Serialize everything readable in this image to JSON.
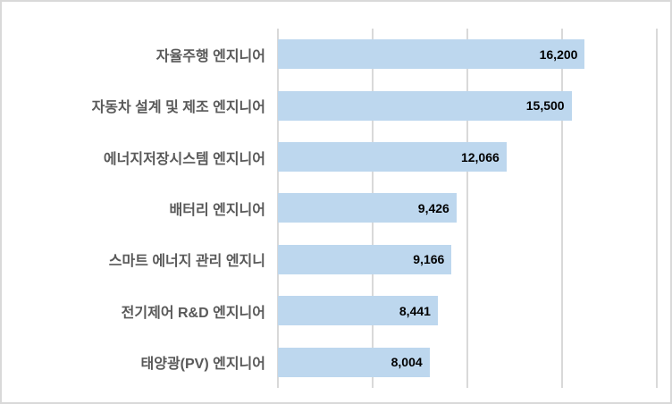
{
  "chart_data": {
    "type": "bar",
    "orientation": "horizontal",
    "title": "",
    "xlabel": "",
    "ylabel": "",
    "legend": "none",
    "grid": true,
    "categories": [
      "자율주행 엔지니어",
      "자동차 설계 및 제조 엔지니어",
      "에너지저장시스템 엔지니어",
      "배터리 엔지니어",
      "스마트 에너지 관리 엔지니",
      "전기제어 R&D 엔지니어",
      "태양광(PV) 엔지니어"
    ],
    "values": [
      16200,
      15500,
      12066,
      9426,
      9166,
      8441,
      8004
    ],
    "value_labels": [
      "16,200",
      "15,500",
      "12,066",
      "9,426",
      "9,166",
      "8,441",
      "8,004"
    ],
    "xlim": [
      0,
      20000
    ],
    "gridline_values": [
      0,
      5000,
      10000,
      15000,
      20000
    ],
    "value_label_position": "inside-end",
    "colors": {
      "bar_fill": "#BDD7EE",
      "category_label": "#595959",
      "value_label": "#000000",
      "gridline": "#D9D9D9",
      "axis_line": "#D9D9D9",
      "chart_background": "#FFFFFF",
      "chart_border": "#D9D9D9"
    }
  }
}
